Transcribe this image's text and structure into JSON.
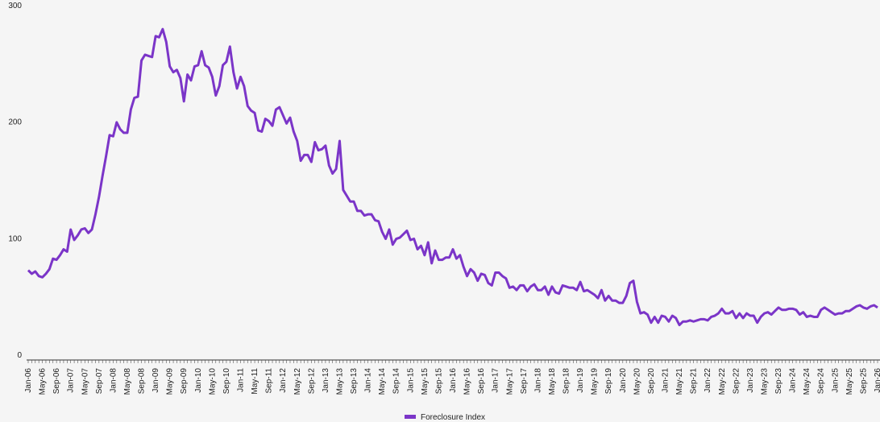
{
  "chart_data": {
    "type": "line",
    "categories": [
      "Jan-06",
      null,
      null,
      null,
      "May-06",
      null,
      null,
      null,
      "Sep-06",
      null,
      null,
      null,
      "Jan-07",
      null,
      null,
      null,
      "May-07",
      null,
      null,
      null,
      "Sep-07",
      null,
      null,
      null,
      "Jan-08",
      null,
      null,
      null,
      "May-08",
      null,
      null,
      null,
      "Sep-08",
      null,
      null,
      null,
      "Jan-09",
      null,
      null,
      null,
      "May-09",
      null,
      null,
      null,
      "Sep-09",
      null,
      null,
      null,
      "Jan-10",
      null,
      null,
      null,
      "May-10",
      null,
      null,
      null,
      "Sep-10",
      null,
      null,
      null,
      "Jan-11",
      null,
      null,
      null,
      "May-11",
      null,
      null,
      null,
      "Sep-11",
      null,
      null,
      null,
      "Jan-12",
      null,
      null,
      null,
      "May-12",
      null,
      null,
      null,
      "Sep-12",
      null,
      null,
      null,
      "Jan-13",
      null,
      null,
      null,
      "May-13",
      null,
      null,
      null,
      "Sep-13",
      null,
      null,
      null,
      "Jan-14",
      null,
      null,
      null,
      "May-14",
      null,
      null,
      null,
      "Sep-14",
      null,
      null,
      null,
      "Jan-15",
      null,
      null,
      null,
      "May-15",
      null,
      null,
      null,
      "Sep-15",
      null,
      null,
      null,
      "Jan-16",
      null,
      null,
      null,
      "May-16",
      null,
      null,
      null,
      "Sep-16",
      null,
      null,
      null,
      "Jan-17",
      null,
      null,
      null,
      "May-17",
      null,
      null,
      null,
      "Sep-17",
      null,
      null,
      null,
      "Jan-18",
      null,
      null,
      null,
      "May-18",
      null,
      null,
      null,
      "Sep-18",
      null,
      null,
      null,
      "Jan-19",
      null,
      null,
      null,
      "May-19",
      null,
      null,
      null,
      "Sep-19",
      null,
      null,
      null,
      "Jan-20",
      null,
      null,
      null,
      "May-20",
      null,
      null,
      null,
      "Sep-20",
      null,
      null,
      null,
      "Jan-21",
      null,
      null,
      null,
      "May-21",
      null,
      null,
      null,
      "Sep-21",
      null,
      null,
      null,
      "Jan-22",
      null,
      null,
      null,
      "May-22",
      null,
      null,
      null,
      "Sep-22",
      null,
      null,
      null,
      "Jan-23",
      null,
      null,
      null,
      "May-23",
      null,
      null,
      null,
      "Sep-23",
      null,
      null,
      null,
      "Jan-24",
      null,
      null,
      null,
      "May-24",
      null,
      null,
      null,
      "Sep-24",
      null,
      null,
      null,
      "Jan-25",
      null,
      null,
      null,
      "May-25",
      null,
      null,
      null,
      "Sep-25",
      null,
      null,
      null,
      "Jan-26"
    ],
    "series": [
      {
        "name": "Foreclosure Index",
        "color": "#7b35c8",
        "values": [
          77,
          74,
          76,
          72,
          71,
          74,
          78,
          87,
          86,
          90,
          95,
          93,
          112,
          103,
          107,
          112,
          113,
          109,
          112,
          125,
          140,
          158,
          175,
          193,
          192,
          204,
          198,
          195,
          195,
          215,
          225,
          226,
          257,
          262,
          261,
          260,
          278,
          277,
          284,
          273,
          252,
          247,
          249,
          242,
          222,
          245,
          240,
          252,
          253,
          265,
          253,
          251,
          243,
          227,
          235,
          253,
          256,
          269,
          247,
          233,
          243,
          235,
          218,
          214,
          212,
          197,
          196,
          207,
          205,
          201,
          215,
          217,
          210,
          203,
          208,
          196,
          188,
          171,
          176,
          176,
          170,
          187,
          180,
          181,
          184,
          167,
          160,
          164,
          188,
          146,
          141,
          136,
          136,
          128,
          128,
          124,
          125,
          125,
          120,
          119,
          110,
          104,
          112,
          99,
          104,
          105,
          108,
          111,
          103,
          104,
          95,
          98,
          90,
          101,
          83,
          94,
          86,
          86,
          88,
          88,
          95,
          87,
          90,
          80,
          72,
          78,
          75,
          68,
          74,
          73,
          66,
          64,
          75,
          75,
          72,
          70,
          62,
          63,
          60,
          64,
          64,
          59,
          63,
          65,
          60,
          60,
          63,
          56,
          63,
          58,
          57,
          64,
          63,
          62,
          62,
          60,
          67,
          59,
          60,
          58,
          56,
          53,
          60,
          51,
          55,
          51,
          51,
          49,
          49,
          55,
          66,
          68,
          50,
          40,
          41,
          39,
          32,
          37,
          32,
          38,
          37,
          33,
          38,
          36,
          30,
          33,
          33,
          34,
          33,
          34,
          35,
          35,
          34,
          37,
          38,
          40,
          44,
          40,
          40,
          42,
          36,
          40,
          36,
          40,
          38,
          38,
          32,
          37,
          40,
          41,
          39,
          42,
          45,
          43,
          43,
          44,
          44,
          43,
          39,
          41,
          37,
          38,
          37,
          37,
          43,
          45,
          43,
          41,
          39,
          40,
          40,
          42,
          42,
          44,
          46,
          47,
          45,
          44,
          46,
          47,
          45
        ]
      }
    ],
    "ylim": [
      0,
      300
    ],
    "yticks": [
      0,
      100,
      200,
      300
    ],
    "grid": false,
    "legend": "bottom"
  }
}
